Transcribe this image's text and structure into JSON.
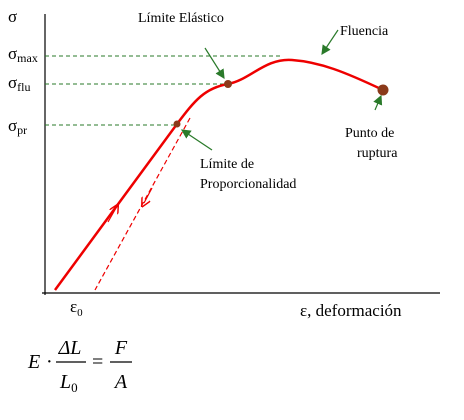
{
  "axis_y": {
    "symbol": "σ"
  },
  "axis_x": {
    "label": "ε, deformación",
    "origin": {
      "symbol": "ε",
      "sub": "0"
    }
  },
  "levels": [
    {
      "symbol": "σ",
      "sub": "max"
    },
    {
      "symbol": "σ",
      "sub": "flu"
    },
    {
      "symbol": "σ",
      "sub": "pr"
    }
  ],
  "annotations": {
    "elastic_limit": "Límite Elástico",
    "yield": "Fluencia",
    "rupture": [
      "Punto de",
      "ruptura"
    ],
    "proportional_limit": [
      "Límite de",
      "Proporcionalidad"
    ]
  },
  "formula": {
    "lhs": "E",
    "dot": "·",
    "num1": "ΔL",
    "den1": "L",
    "den1_sub": "0",
    "eq": "=",
    "num2": "F",
    "den2": "A"
  }
}
